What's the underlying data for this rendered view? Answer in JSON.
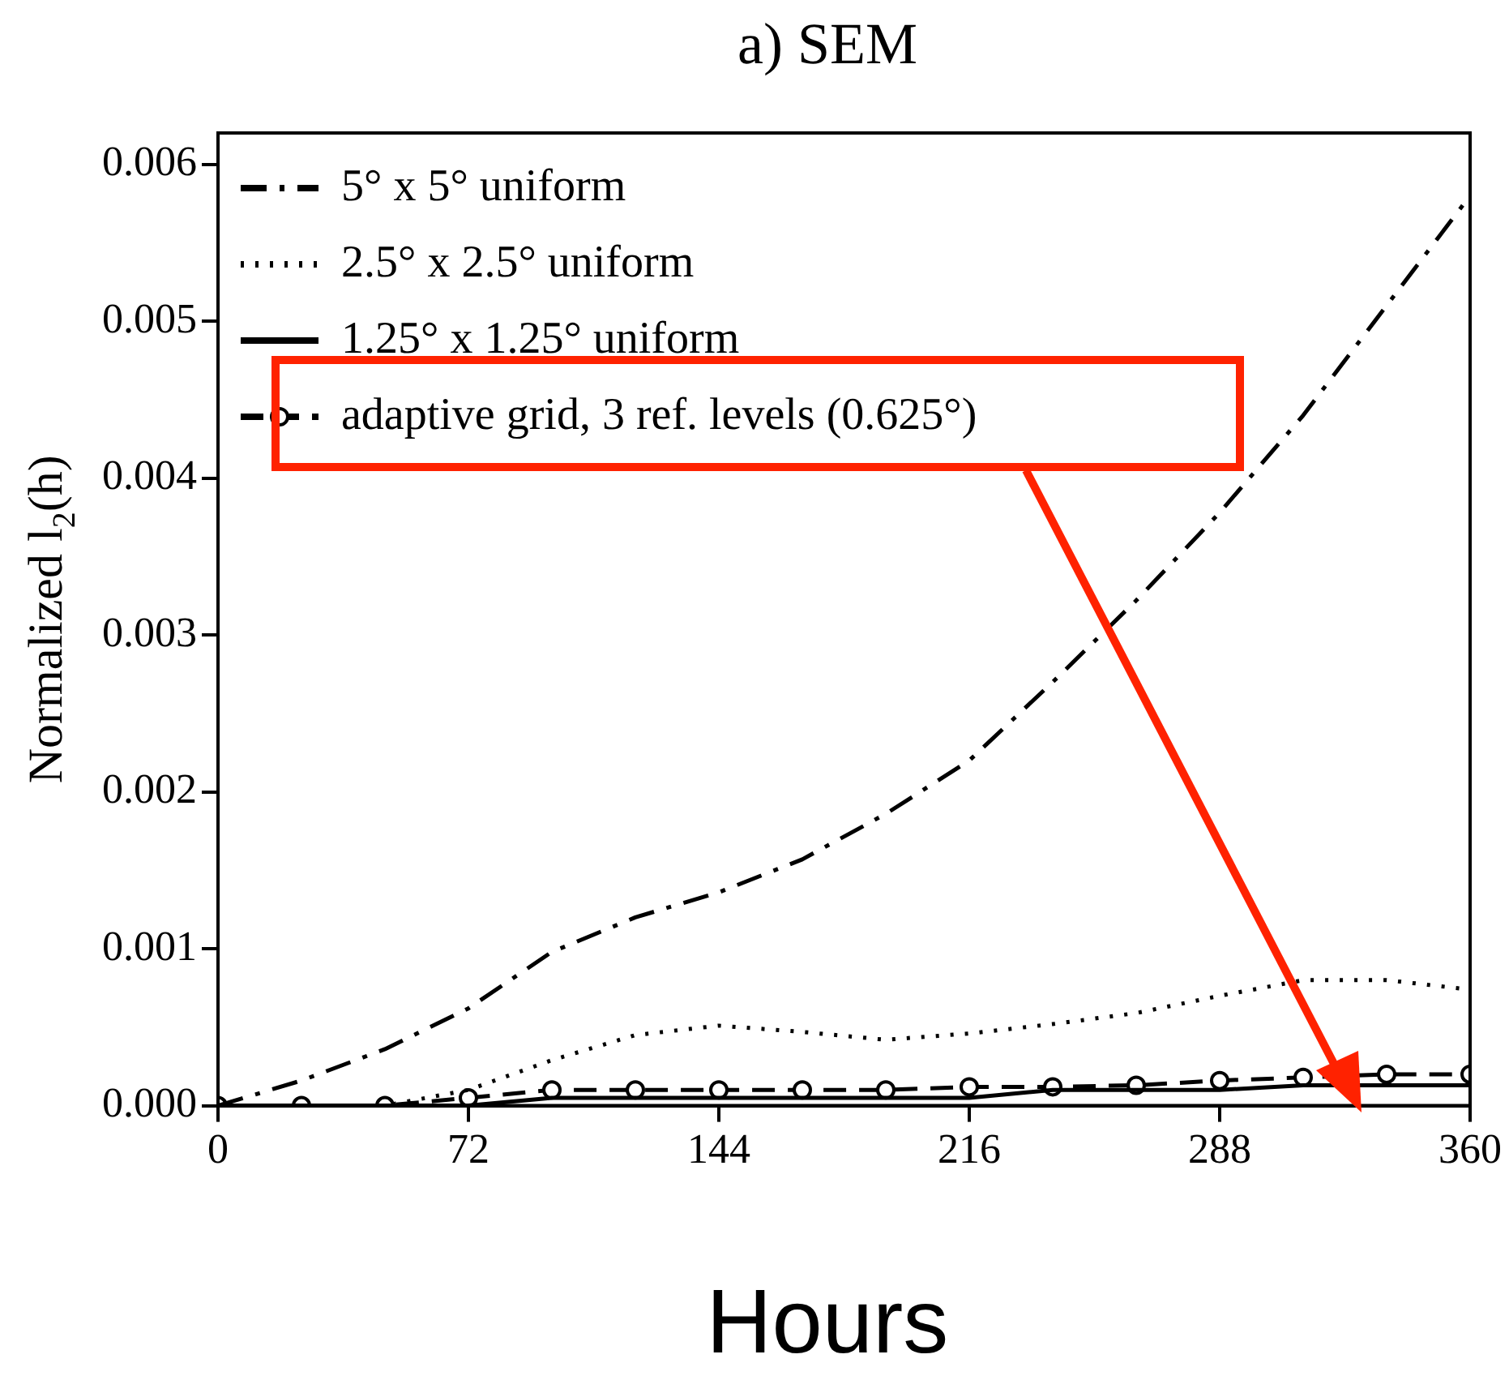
{
  "chart_data": {
    "type": "line",
    "title": "a) SEM",
    "xlabel": "Hours",
    "ylabel": "Normalized l$_{2}$(h)",
    "x": [
      0,
      24,
      48,
      72,
      96,
      120,
      144,
      168,
      192,
      216,
      240,
      264,
      288,
      312,
      336,
      360
    ],
    "series": [
      {
        "name": "5° x 5° uniform",
        "color": "#000000",
        "line_style": "dashdot",
        "marker": "none",
        "values": [
          0,
          0.00016,
          0.00036,
          0.00062,
          0.00098,
          0.0012,
          0.00136,
          0.00157,
          0.00186,
          0.0022,
          0.0027,
          0.00322,
          0.00378,
          0.0044,
          0.0051,
          0.0058
        ]
      },
      {
        "name": "2.5° x 2.5° uniform",
        "color": "#000000",
        "line_style": "dotted",
        "marker": "none",
        "values": [
          0,
          0,
          0,
          0.0001,
          0.00029,
          0.00045,
          0.00051,
          0.00047,
          0.00042,
          0.00046,
          0.00052,
          0.00059,
          0.0007,
          0.0008,
          0.0008,
          0.00074
        ]
      },
      {
        "name": "1.25° x 1.25° uniform",
        "color": "#000000",
        "line_style": "solid",
        "marker": "none",
        "values": [
          0,
          0,
          0,
          0,
          5e-05,
          5e-05,
          5e-05,
          5e-05,
          5e-05,
          5e-05,
          0.0001,
          0.0001,
          0.0001,
          0.00013,
          0.00013,
          0.00013
        ]
      },
      {
        "name": "adaptive grid, 3 ref. levels (0.625°)",
        "color": "#000000",
        "line_style": "dashed",
        "marker": "circle",
        "values": [
          0,
          0,
          0,
          5e-05,
          0.0001,
          0.0001,
          0.0001,
          0.0001,
          0.0001,
          0.00012,
          0.00012,
          0.00013,
          0.00016,
          0.00018,
          0.0002,
          0.0002
        ]
      }
    ],
    "xlim": [
      0,
      360
    ],
    "xticks": [
      0,
      72,
      144,
      216,
      288,
      360
    ],
    "ylim": [
      0,
      0.0062
    ],
    "yticks": [
      {
        "value": 0,
        "label": "0.000"
      },
      {
        "value": 0.001,
        "label": "0.001"
      },
      {
        "value": 0.002,
        "label": "0.002"
      },
      {
        "value": 0.003,
        "label": "0.003"
      },
      {
        "value": 0.004,
        "label": "0.004"
      },
      {
        "value": 0.005,
        "label": "0.005"
      },
      {
        "value": 0.006,
        "label": "0.006"
      }
    ],
    "grid": false,
    "legend": "top left"
  }
}
